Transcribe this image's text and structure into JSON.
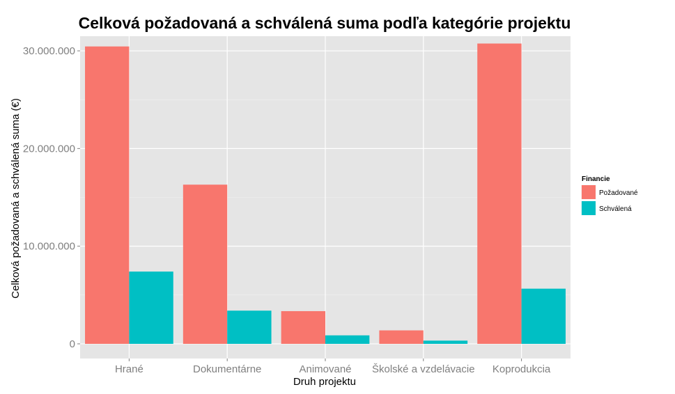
{
  "chart_data": {
    "type": "bar",
    "title": "Celková požadovaná a schválená suma podľa kategórie projektu",
    "xlabel": "Druh projektu",
    "ylabel": "Celková požadovaná a schválená suma (€)",
    "categories": [
      "Hrané",
      "Dokumentárne",
      "Animované",
      "Školské a vzdelávacie",
      "Koprodukcia"
    ],
    "series": [
      {
        "name": "Požadované",
        "color": "#F8766D",
        "values": [
          30450000,
          16300000,
          3350000,
          1380000,
          30750000
        ]
      },
      {
        "name": "Schválená",
        "color": "#00BFC4",
        "values": [
          7400000,
          3400000,
          870000,
          330000,
          5650000
        ]
      }
    ],
    "ylim": [
      -1500000,
      31500000
    ],
    "yticks": [
      0,
      10000000,
      20000000,
      30000000
    ],
    "ytick_labels": [
      "0",
      "10.000.000",
      "20.000.000",
      "30.000.000"
    ],
    "legend": {
      "title": "Financie",
      "position": "right"
    },
    "grid": true,
    "panel_color": "#E5E5E5"
  }
}
